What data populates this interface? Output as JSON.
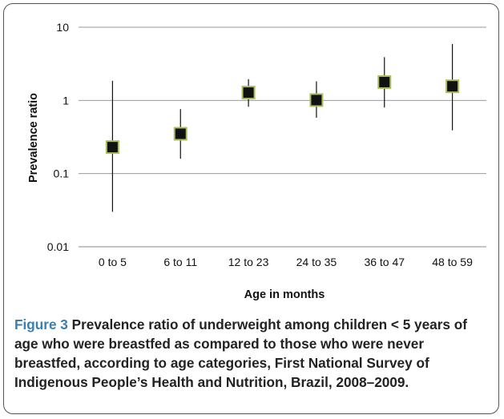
{
  "caption": {
    "lead": "Figure 3",
    "text": "Prevalence ratio of underweight among children < 5 years of age who were breastfed as compared to those who were never breastfed, according to age categories, First National Survey of Indigenous People’s Health and Nutrition, Brazil, 2008–2009."
  },
  "chart_data": {
    "type": "scatter",
    "scale": "log",
    "xlabel": "Age in months",
    "ylabel": "Prevalence ratio",
    "ylim": [
      0.01,
      10
    ],
    "yticks": [
      "10",
      "1",
      "0.1",
      "0.01"
    ],
    "grid": true,
    "categories": [
      "0 to 5",
      "6 to 11",
      "12 to 23",
      "24 to 35",
      "36 to 47",
      "48 to 59"
    ],
    "values": [
      0.23,
      0.35,
      1.28,
      1.01,
      1.78,
      1.56
    ],
    "ci_low": [
      0.03,
      0.16,
      0.82,
      0.58,
      0.8,
      0.39
    ],
    "ci_high": [
      1.85,
      0.76,
      1.95,
      1.82,
      3.9,
      5.9
    ],
    "marker_color": "#111111",
    "marker_border": "#a9c05a"
  }
}
